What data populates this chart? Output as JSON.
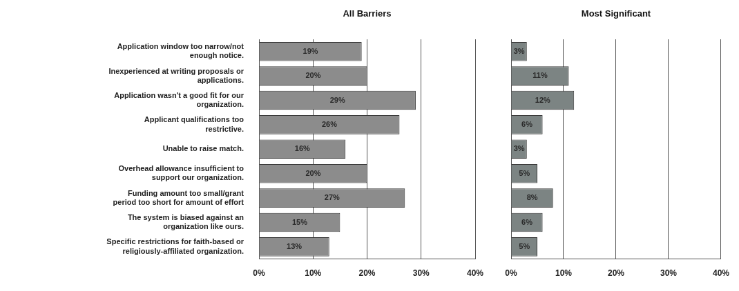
{
  "chart_data": [
    {
      "type": "bar",
      "orientation": "horizontal",
      "title": "All Barriers",
      "categories": [
        "Application window too narrow/not enough notice.",
        "Inexperienced at writing proposals or applications.",
        "Application wasn't a good fit for our organization.",
        "Applicant qualifications too restrictive.",
        "Unable to raise match.",
        "Overhead allowance insufficient to support our organization.",
        "Funding amount too small/grant period too short for amount of effort",
        "The system is biased against an organization like ours.",
        "Specific restrictions for faith-based or religiously-affiliated organization."
      ],
      "values": [
        19,
        20,
        29,
        26,
        16,
        20,
        27,
        15,
        13
      ],
      "value_labels": [
        "19%",
        "20%",
        "29%",
        "26%",
        "16%",
        "20%",
        "27%",
        "15%",
        "13%"
      ],
      "color": "#8c8c8c",
      "xlim": [
        0,
        40
      ],
      "xticks": [
        {
          "value": 0,
          "label": "0%"
        },
        {
          "value": 10,
          "label": "10%"
        },
        {
          "value": 20,
          "label": "20%"
        },
        {
          "value": 30,
          "label": "30%"
        },
        {
          "value": 40,
          "label": "40%"
        }
      ],
      "grid": "x"
    },
    {
      "type": "bar",
      "orientation": "horizontal",
      "title": "Most Significant",
      "categories": [
        null,
        null,
        null,
        null,
        null,
        null,
        null,
        null,
        null
      ],
      "values": [
        3,
        11,
        12,
        6,
        3,
        5,
        8,
        6,
        5
      ],
      "value_labels": [
        "3%",
        "11%",
        "12%",
        "6%",
        "3%",
        "5%",
        "8%",
        "6%",
        "5%"
      ],
      "color": "#7c8483",
      "xlim": [
        0,
        40
      ],
      "xticks": [
        {
          "value": 0,
          "label": "0%"
        },
        {
          "value": 10,
          "label": "10%"
        },
        {
          "value": 20,
          "label": "20%"
        },
        {
          "value": 30,
          "label": "30%"
        },
        {
          "value": 40,
          "label": "40%"
        }
      ],
      "grid": "x",
      "tick_labels": "x"
    }
  ]
}
